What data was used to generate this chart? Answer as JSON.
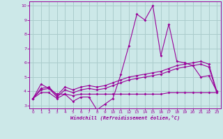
{
  "x": [
    0,
    1,
    2,
    3,
    4,
    5,
    6,
    7,
    8,
    9,
    10,
    11,
    12,
    13,
    14,
    15,
    16,
    17,
    18,
    19,
    20,
    21,
    22,
    23
  ],
  "line1": [
    3.5,
    4.5,
    4.2,
    3.8,
    3.8,
    3.3,
    3.6,
    3.6,
    2.7,
    3.1,
    3.5,
    5.2,
    7.2,
    9.4,
    9.0,
    10.0,
    6.5,
    8.7,
    6.1,
    6.0,
    5.8,
    5.0,
    5.1,
    4.0
  ],
  "line2": [
    3.5,
    4.2,
    4.3,
    3.7,
    4.3,
    4.1,
    4.3,
    4.4,
    4.3,
    4.4,
    4.6,
    4.8,
    5.0,
    5.1,
    5.2,
    5.3,
    5.4,
    5.6,
    5.8,
    5.9,
    6.0,
    6.1,
    5.9,
    4.0
  ],
  "line3": [
    3.5,
    4.1,
    4.2,
    3.6,
    4.1,
    3.9,
    4.1,
    4.2,
    4.1,
    4.2,
    4.4,
    4.6,
    4.8,
    4.9,
    5.0,
    5.1,
    5.2,
    5.4,
    5.6,
    5.7,
    5.8,
    5.9,
    5.7,
    3.9
  ],
  "line4": [
    3.5,
    3.9,
    3.9,
    3.5,
    3.8,
    3.7,
    3.8,
    3.8,
    3.8,
    3.8,
    3.8,
    3.8,
    3.8,
    3.8,
    3.8,
    3.8,
    3.8,
    3.9,
    3.9,
    3.9,
    3.9,
    3.9,
    3.9,
    3.9
  ],
  "color": "#990099",
  "background": "#cce8e8",
  "grid_color": "#aacccc",
  "xlabel": "Windchill (Refroidissement éolien,°C)",
  "ylim": [
    3,
    10
  ],
  "xlim": [
    0,
    23
  ],
  "yticks": [
    3,
    4,
    5,
    6,
    7,
    8,
    9,
    10
  ],
  "xticks": [
    0,
    1,
    2,
    3,
    4,
    5,
    6,
    7,
    8,
    9,
    10,
    11,
    12,
    13,
    14,
    15,
    16,
    17,
    18,
    19,
    20,
    21,
    22,
    23
  ]
}
